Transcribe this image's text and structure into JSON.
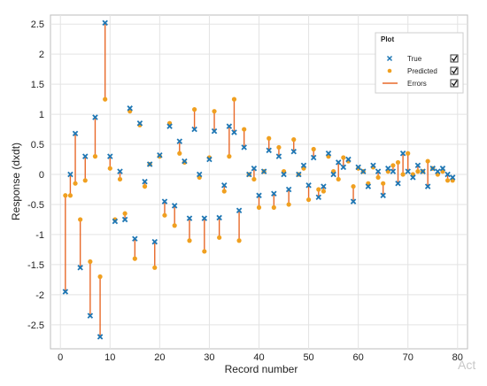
{
  "chart_data": {
    "type": "scatter",
    "title": "",
    "xlabel": "Record number",
    "ylabel": "Response (dxdt)",
    "xlim": [
      -2,
      82
    ],
    "ylim": [
      -2.9,
      2.65
    ],
    "xticks": [
      "0",
      "10",
      "20",
      "30",
      "40",
      "50",
      "60",
      "70",
      "80"
    ],
    "yticks": [
      "-2.5",
      "-2",
      "-1.5",
      "-1",
      "-0.5",
      "0",
      "0.5",
      "1",
      "1.5",
      "2",
      "2.5"
    ],
    "grid": true,
    "legend": {
      "title": "Plot",
      "placement": "top-right"
    },
    "colors": {
      "true": "#1f77b4",
      "predicted": "#f0a020",
      "errors": "#e8692a"
    },
    "series": [
      {
        "name": "True",
        "marker": "x",
        "x": [
          1,
          2,
          3,
          4,
          5,
          6,
          7,
          8,
          9,
          10,
          11,
          12,
          13,
          14,
          15,
          16,
          17,
          18,
          19,
          20,
          21,
          22,
          23,
          24,
          25,
          26,
          27,
          28,
          29,
          30,
          31,
          32,
          33,
          34,
          35,
          36,
          37,
          38,
          39,
          40,
          41,
          42,
          43,
          44,
          45,
          46,
          47,
          48,
          49,
          50,
          51,
          52,
          53,
          54,
          55,
          56,
          57,
          58,
          59,
          60,
          61,
          62,
          63,
          64,
          65,
          66,
          67,
          68,
          69,
          70,
          71,
          72,
          73,
          74,
          75,
          76,
          77,
          78,
          79
        ],
        "y": [
          -1.95,
          0.0,
          0.68,
          -1.55,
          0.3,
          -2.35,
          0.95,
          -2.7,
          2.52,
          0.3,
          -0.78,
          0.05,
          -0.75,
          1.1,
          -1.07,
          0.85,
          -0.12,
          0.17,
          -1.12,
          0.32,
          -0.45,
          0.8,
          -0.52,
          0.55,
          0.22,
          -0.73,
          0.75,
          0.0,
          -0.73,
          0.25,
          0.72,
          -0.72,
          -0.18,
          0.8,
          0.7,
          -0.6,
          0.45,
          0.0,
          0.1,
          -0.35,
          0.05,
          0.4,
          -0.32,
          0.3,
          0.0,
          -0.25,
          0.38,
          0.0,
          0.15,
          -0.18,
          0.28,
          -0.38,
          -0.2,
          0.35,
          0.0,
          0.2,
          0.12,
          0.25,
          -0.45,
          0.12,
          0.05,
          -0.2,
          0.15,
          0.05,
          -0.35,
          0.1,
          0.05,
          -0.15,
          0.35,
          0.05,
          -0.05,
          0.15,
          0.05,
          -0.2,
          0.1,
          0.05,
          0.1,
          0.0,
          -0.05
        ]
      },
      {
        "name": "Predicted",
        "marker": "circle",
        "x": [
          1,
          2,
          3,
          4,
          5,
          6,
          7,
          8,
          9,
          10,
          11,
          12,
          13,
          14,
          15,
          16,
          17,
          18,
          19,
          20,
          21,
          22,
          23,
          24,
          25,
          26,
          27,
          28,
          29,
          30,
          31,
          32,
          33,
          34,
          35,
          36,
          37,
          38,
          39,
          40,
          41,
          42,
          43,
          44,
          45,
          46,
          47,
          48,
          49,
          50,
          51,
          52,
          53,
          54,
          55,
          56,
          57,
          58,
          59,
          60,
          61,
          62,
          63,
          64,
          65,
          66,
          67,
          68,
          69,
          70,
          71,
          72,
          73,
          74,
          75,
          76,
          77,
          78,
          79
        ],
        "y": [
          -0.35,
          -0.35,
          -0.15,
          -0.75,
          -0.1,
          -1.45,
          0.3,
          -1.7,
          1.25,
          0.1,
          -0.75,
          -0.08,
          -0.65,
          1.05,
          -1.4,
          0.82,
          -0.2,
          0.17,
          -1.55,
          0.3,
          -0.68,
          0.85,
          -0.85,
          0.35,
          0.2,
          -1.1,
          1.08,
          -0.05,
          -1.28,
          0.28,
          1.05,
          -1.05,
          -0.28,
          0.3,
          1.25,
          -1.1,
          0.75,
          0.0,
          -0.08,
          -0.55,
          0.05,
          0.6,
          -0.55,
          0.45,
          0.05,
          -0.5,
          0.58,
          0.0,
          0.1,
          -0.42,
          0.42,
          -0.25,
          -0.28,
          0.3,
          0.05,
          -0.08,
          0.28,
          0.22,
          -0.2,
          0.1,
          0.05,
          -0.15,
          0.12,
          -0.05,
          -0.15,
          0.05,
          0.15,
          0.2,
          0.0,
          0.35,
          0.0,
          0.05,
          0.05,
          0.22,
          0.1,
          0.0,
          0.05,
          -0.1,
          -0.1
        ]
      },
      {
        "name": "Errors",
        "marker": "line"
      }
    ]
  },
  "watermark": "Act"
}
